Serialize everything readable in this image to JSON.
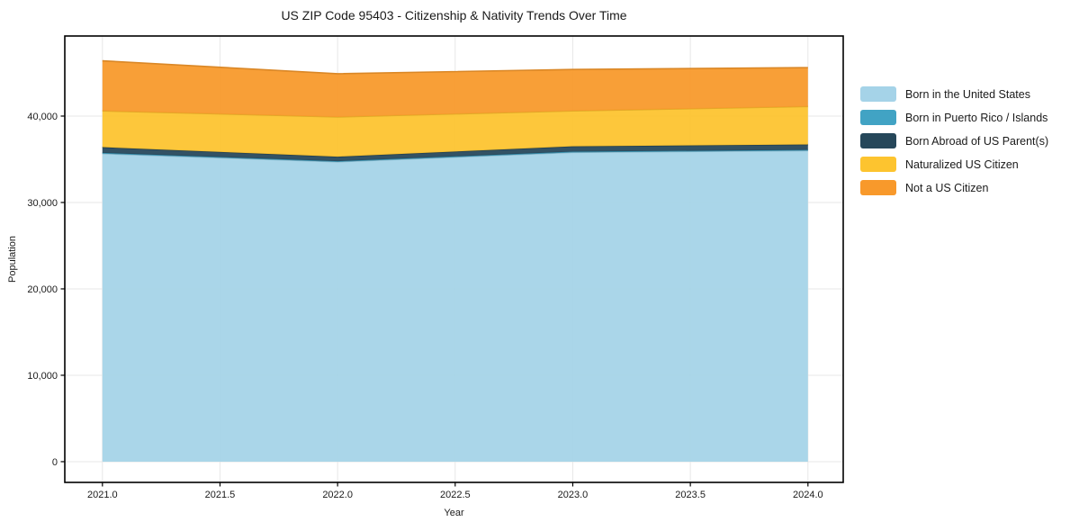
{
  "title": "US ZIP Code 95403 - Citizenship & Nativity Trends Over Time",
  "colors": {
    "grid": "#e7e7e7",
    "spine": "#000000",
    "text": "#1a1a1a",
    "plot_background": "#ffffff"
  },
  "chart_data": {
    "type": "area",
    "stacked": true,
    "title": "US ZIP Code 95403 - Citizenship & Nativity Trends Over Time",
    "xlabel": "Year",
    "ylabel": "Population",
    "x": [
      2021,
      2022,
      2023,
      2024
    ],
    "series": [
      {
        "name": "Born in the United States",
        "color": "#a5d3e8",
        "values": [
          35650,
          34700,
          35800,
          36000
        ]
      },
      {
        "name": "Born in Puerto Rico / Islands",
        "color": "#41a3c4",
        "values": [
          90,
          80,
          80,
          90
        ]
      },
      {
        "name": "Born Abroad of US Parent(s)",
        "color": "#26475a",
        "values": [
          660,
          520,
          620,
          620
        ]
      },
      {
        "name": "Naturalized US Citizen",
        "color": "#fdc42f",
        "values": [
          4200,
          4600,
          4100,
          4400
        ]
      },
      {
        "name": "Not a US Citizen",
        "color": "#f8992b",
        "values": [
          5800,
          5000,
          4800,
          4500
        ]
      }
    ],
    "totals": [
      46400,
      44900,
      45400,
      45610
    ],
    "xlim": [
      2020.84,
      2024.15
    ],
    "ylim": [
      -2400,
      49270
    ],
    "xticks": [
      "2021.0",
      "2021.5",
      "2022.0",
      "2022.5",
      "2023.0",
      "2023.5",
      "2024.0"
    ],
    "xtick_values": [
      2021,
      2021.5,
      2022,
      2022.5,
      2023,
      2023.5,
      2024
    ],
    "yticks": [
      "0",
      "10,000",
      "20,000",
      "30,000",
      "40,000"
    ],
    "ytick_values": [
      0,
      10000,
      20000,
      30000,
      40000
    ],
    "grid": true,
    "legend_position": "center right outside"
  }
}
